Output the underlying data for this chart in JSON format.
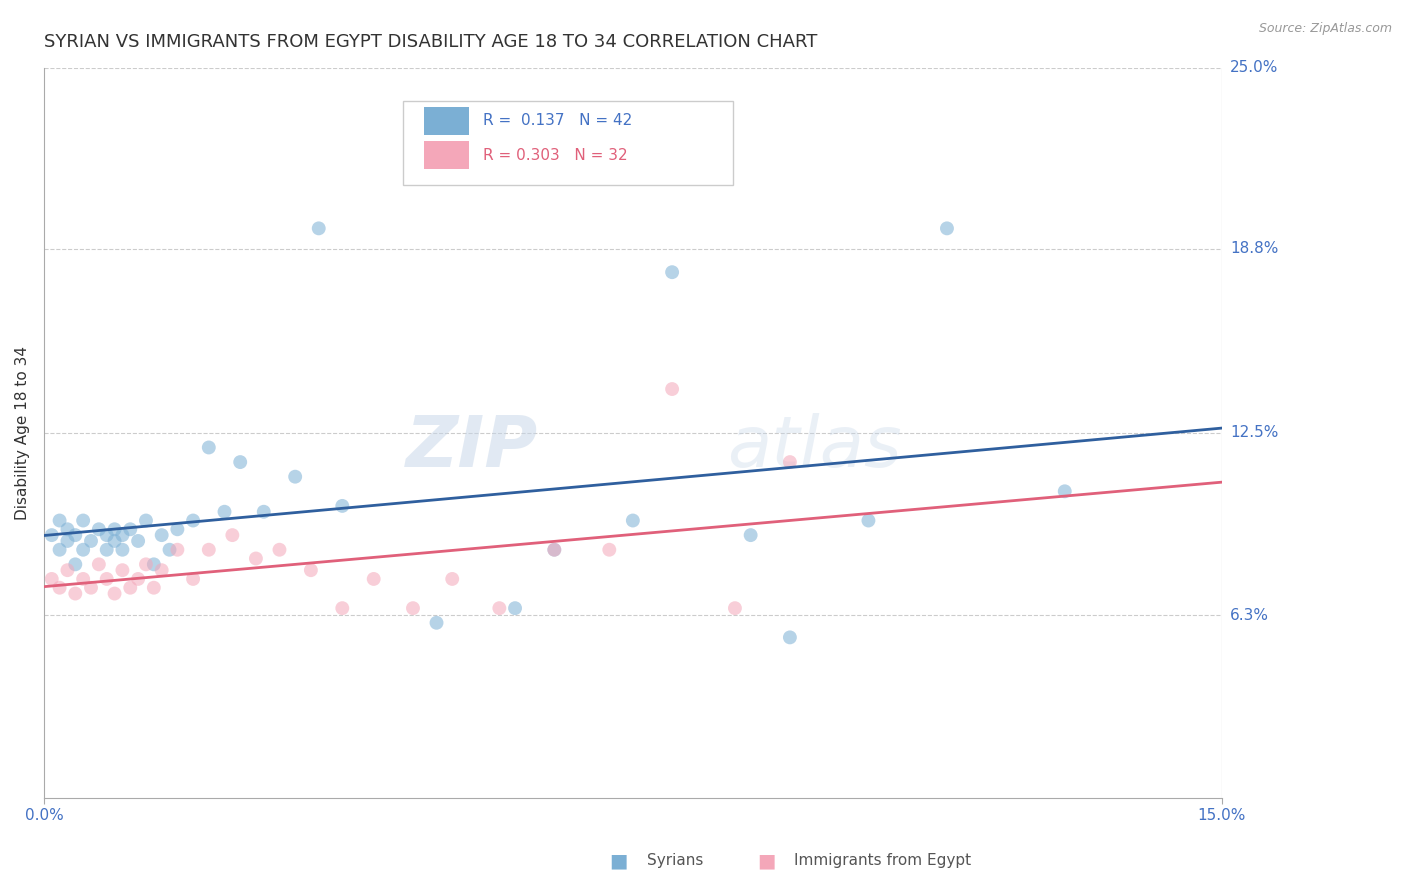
{
  "title": "SYRIAN VS IMMIGRANTS FROM EGYPT DISABILITY AGE 18 TO 34 CORRELATION CHART",
  "source": "Source: ZipAtlas.com",
  "ylabel": "Disability Age 18 to 34",
  "xlim": [
    0.0,
    0.15
  ],
  "ylim": [
    0.0,
    0.25
  ],
  "xticklabels": [
    "0.0%",
    "15.0%"
  ],
  "ytick_positions": [
    0.0625,
    0.125,
    0.188,
    0.25
  ],
  "ytick_labels": [
    "6.3%",
    "12.5%",
    "18.8%",
    "25.0%"
  ],
  "syrian_color": "#7bafd4",
  "egypt_color": "#f4a7b9",
  "syrian_line_color": "#2f5f9e",
  "egypt_line_color": "#e0607a",
  "legend_R_syrian": "0.137",
  "legend_N_syrian": "42",
  "legend_R_egypt": "0.303",
  "legend_N_egypt": "32",
  "watermark_text": "ZIPatlas",
  "syrians_x": [
    0.001,
    0.002,
    0.002,
    0.003,
    0.003,
    0.004,
    0.004,
    0.005,
    0.005,
    0.006,
    0.007,
    0.008,
    0.008,
    0.009,
    0.009,
    0.01,
    0.01,
    0.011,
    0.012,
    0.013,
    0.014,
    0.015,
    0.016,
    0.017,
    0.019,
    0.021,
    0.023,
    0.025,
    0.028,
    0.032,
    0.035,
    0.038,
    0.05,
    0.06,
    0.065,
    0.075,
    0.08,
    0.09,
    0.095,
    0.105,
    0.115,
    0.13
  ],
  "syrians_y": [
    0.09,
    0.085,
    0.095,
    0.088,
    0.092,
    0.08,
    0.09,
    0.085,
    0.095,
    0.088,
    0.092,
    0.085,
    0.09,
    0.088,
    0.092,
    0.085,
    0.09,
    0.092,
    0.088,
    0.095,
    0.08,
    0.09,
    0.085,
    0.092,
    0.095,
    0.12,
    0.098,
    0.115,
    0.098,
    0.11,
    0.195,
    0.1,
    0.06,
    0.065,
    0.085,
    0.095,
    0.18,
    0.09,
    0.055,
    0.095,
    0.195,
    0.105
  ],
  "egypt_x": [
    0.001,
    0.002,
    0.003,
    0.004,
    0.005,
    0.006,
    0.007,
    0.008,
    0.009,
    0.01,
    0.011,
    0.012,
    0.013,
    0.014,
    0.015,
    0.017,
    0.019,
    0.021,
    0.024,
    0.027,
    0.03,
    0.034,
    0.038,
    0.042,
    0.047,
    0.052,
    0.058,
    0.065,
    0.072,
    0.08,
    0.088,
    0.095
  ],
  "egypt_y": [
    0.075,
    0.072,
    0.078,
    0.07,
    0.075,
    0.072,
    0.08,
    0.075,
    0.07,
    0.078,
    0.072,
    0.075,
    0.08,
    0.072,
    0.078,
    0.085,
    0.075,
    0.085,
    0.09,
    0.082,
    0.085,
    0.078,
    0.065,
    0.075,
    0.065,
    0.075,
    0.065,
    0.085,
    0.085,
    0.14,
    0.065,
    0.115
  ],
  "marker_size": 100,
  "marker_alpha": 0.55,
  "grid_color": "#cccccc",
  "text_color": "#4472c4",
  "background_color": "#ffffff",
  "title_fontsize": 13,
  "axis_label_fontsize": 11,
  "tick_fontsize": 11,
  "source_fontsize": 9,
  "legend_text_color_syrian": "#4472c4",
  "legend_text_color_egypt": "#e0607a"
}
